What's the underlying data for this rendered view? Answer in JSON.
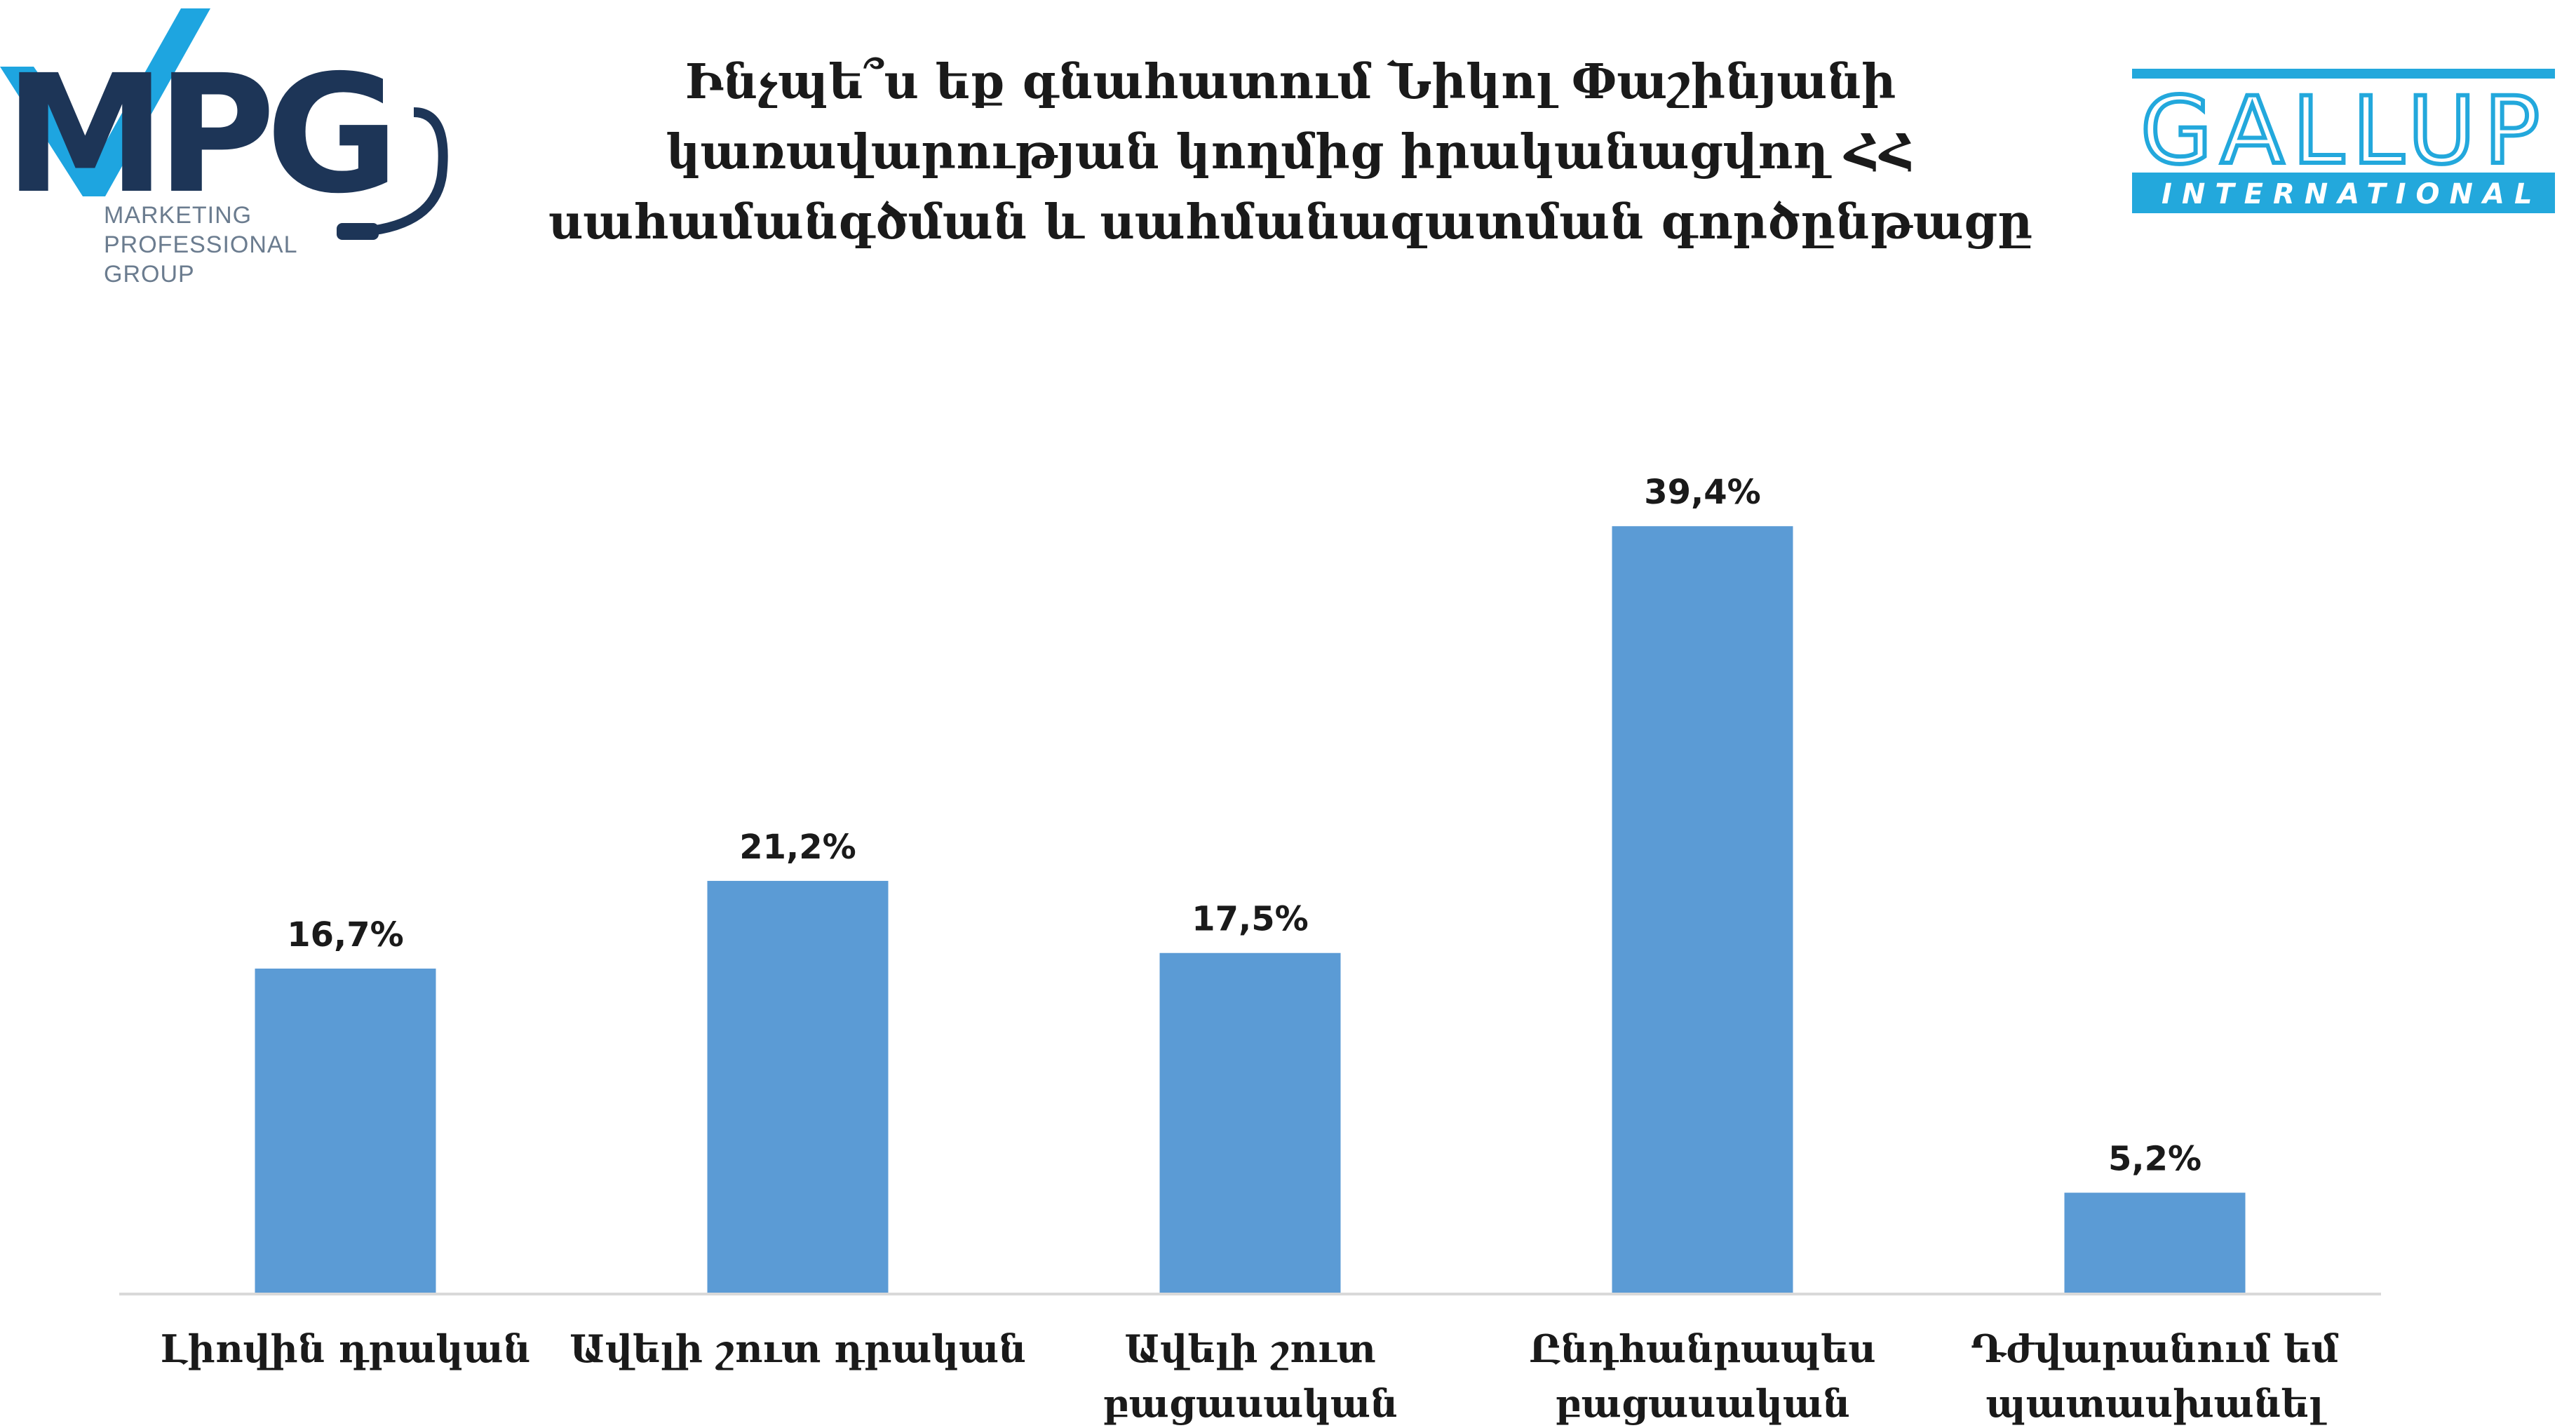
{
  "logos": {
    "mpg": {
      "lines": [
        "MARKETING",
        "PROFESSIONAL",
        "GROUP"
      ],
      "colors": {
        "navy": "#1d3557",
        "blue": "#1ea5e0",
        "gray": "#6b7c8f"
      }
    },
    "gallup": {
      "main": "GALLUP",
      "sub": "INTERNATIONAL",
      "color": "#23a8dc"
    }
  },
  "chart_data": {
    "type": "bar",
    "title": [
      "Ինչպե՞ս եք գնահատում Նիկոլ Փաշինյանի",
      "կառավարության կողմից իրականացվող ՀՀ",
      "սահամանգծման և սահմանազատման գործընթացը"
    ],
    "categories": [
      [
        "Լիովին դրական"
      ],
      [
        "Ավելի շուտ դրական"
      ],
      [
        "Ավելի շուտ",
        "բացասական"
      ],
      [
        "Ընդհանրապես",
        "բացասական"
      ],
      [
        "Դժվարանում եմ",
        "պատասխանել"
      ]
    ],
    "values": [
      16.7,
      21.2,
      17.5,
      39.4,
      5.2
    ],
    "value_labels": [
      "16,7%",
      "21,2%",
      "17,5%",
      "39,4%",
      "5,2%"
    ],
    "unit": "%",
    "ylim": [
      0,
      40.2
    ],
    "bar_color": "#5b9bd5",
    "axis_color": "#d9d9d9",
    "grid": false,
    "legend": "none",
    "xlabel": "",
    "ylabel": ""
  }
}
